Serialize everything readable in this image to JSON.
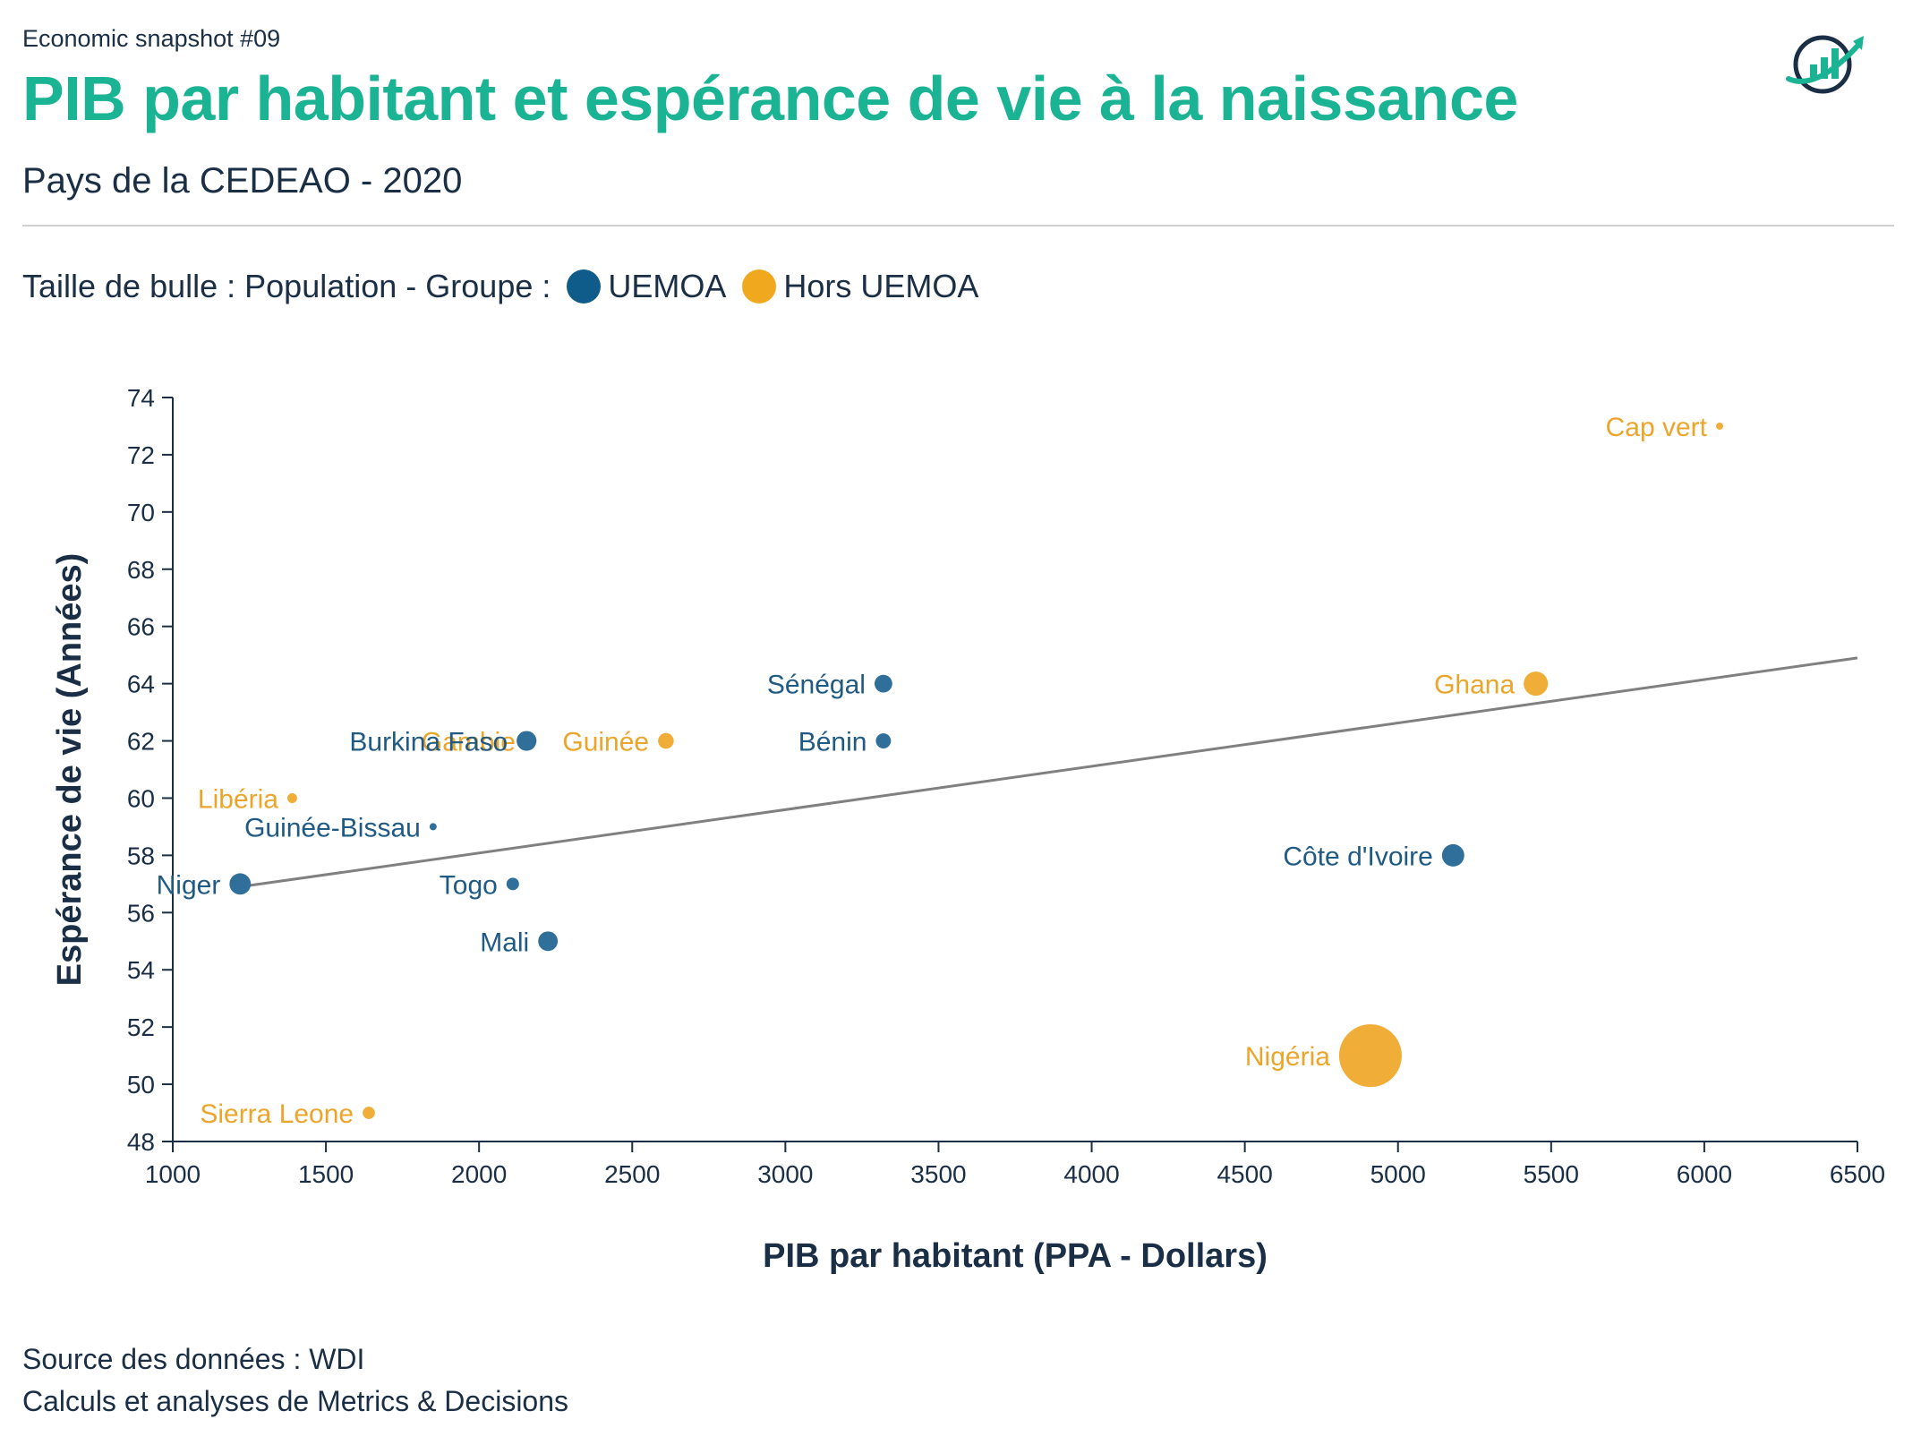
{
  "header": {
    "kicker": "Economic snapshot #09",
    "title": "PIB par habitant et espérance de vie à la naissance",
    "subtitle": "Pays de la CEDEAO - 2020"
  },
  "legend": {
    "prefix": "Taille de bulle : Population - Groupe :",
    "items": [
      {
        "label": "UEMOA",
        "color": "#0f5c8a"
      },
      {
        "label": "Hors UEMOA",
        "color": "#f0a81e"
      }
    ]
  },
  "logo": {
    "icon": "growth-chart-logo-icon"
  },
  "footer": {
    "source": "Source des données : WDI",
    "credits": "Calculs et analyses de Metrics & Decisions"
  },
  "chart_data": {
    "type": "scatter",
    "xlabel": "PIB par habitant (PPA - Dollars)",
    "ylabel": "Espérance de vie (Années)",
    "xlim": [
      1000,
      6500
    ],
    "ylim": [
      48,
      74
    ],
    "xticks": [
      1000,
      1500,
      2000,
      2500,
      3000,
      3500,
      4000,
      4500,
      5000,
      5500,
      6000,
      6500
    ],
    "yticks": [
      48,
      50,
      52,
      54,
      56,
      58,
      60,
      62,
      64,
      66,
      68,
      70,
      72,
      74
    ],
    "grid": false,
    "size_encoding": "Population",
    "colors": {
      "UEMOA": "#2f6f9a",
      "Hors UEMOA": "#f0ad37"
    },
    "label_colors": {
      "UEMOA": "#1f5a84",
      "Hors UEMOA": "#eba52b"
    },
    "points": [
      {
        "label": "Cap vert",
        "x": 6050,
        "y": 73,
        "group": "Hors UEMOA",
        "population": 0.56
      },
      {
        "label": "Ghana",
        "x": 5450,
        "y": 64,
        "group": "Hors UEMOA",
        "population": 31.1
      },
      {
        "label": "Nigéria",
        "x": 4910,
        "y": 51,
        "group": "Hors UEMOA",
        "population": 208.3
      },
      {
        "label": "Guinée",
        "x": 2610,
        "y": 62,
        "group": "Hors UEMOA",
        "population": 13.1
      },
      {
        "label": "Gambie",
        "x": 2160,
        "y": 62,
        "group": "Hors UEMOA",
        "population": 2.4
      },
      {
        "label": "Libéria",
        "x": 1390,
        "y": 60,
        "group": "Hors UEMOA",
        "population": 5.1
      },
      {
        "label": "Sierra Leone",
        "x": 1640,
        "y": 49,
        "group": "Hors UEMOA",
        "population": 8.0
      },
      {
        "label": "Sénégal",
        "x": 3320,
        "y": 64,
        "group": "UEMOA",
        "population": 16.7
      },
      {
        "label": "Bénin",
        "x": 3320,
        "y": 62,
        "group": "UEMOA",
        "population": 12.1
      },
      {
        "label": "Burkina Faso",
        "x": 2155,
        "y": 62,
        "group": "UEMOA",
        "population": 20.9
      },
      {
        "label": "Guinée-Bissau",
        "x": 1850,
        "y": 59,
        "group": "UEMOA",
        "population": 2.0
      },
      {
        "label": "Niger",
        "x": 1220,
        "y": 57,
        "group": "UEMOA",
        "population": 24.2
      },
      {
        "label": "Togo",
        "x": 2110,
        "y": 57,
        "group": "UEMOA",
        "population": 8.3
      },
      {
        "label": "Mali",
        "x": 2225,
        "y": 55,
        "group": "UEMOA",
        "population": 20.3
      },
      {
        "label": "Côte d'Ivoire",
        "x": 5180,
        "y": 58,
        "group": "UEMOA",
        "population": 26.4
      }
    ],
    "trendline": {
      "x": [
        1220,
        6500
      ],
      "y": [
        56.9,
        64.9
      ],
      "color": "#808080"
    }
  }
}
